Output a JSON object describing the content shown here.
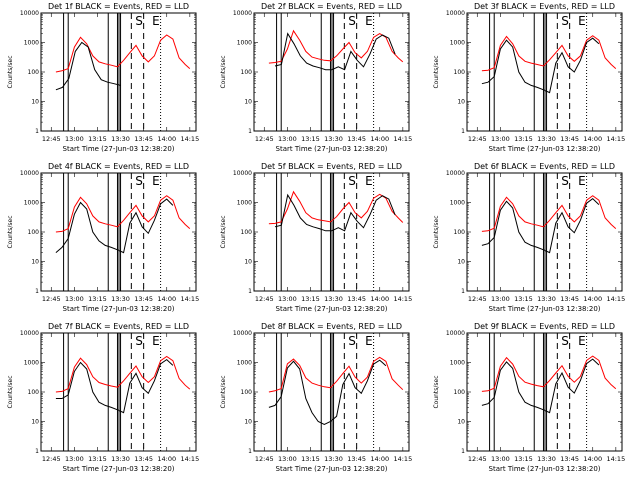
{
  "figure": {
    "panels": [
      {
        "title": "Det 1f BLACK = Events, RED = LLD"
      },
      {
        "title": "Det 2f BLACK = Events, RED = LLD"
      },
      {
        "title": "Det 3f BLACK = Events, RED = LLD"
      },
      {
        "title": "Det 4f BLACK = Events, RED = LLD"
      },
      {
        "title": "Det 5f BLACK = Events, RED = LLD"
      },
      {
        "title": "Det 6f BLACK = Events, RED = LLD"
      },
      {
        "title": "Det 7f BLACK = Events, RED = LLD"
      },
      {
        "title": "Det 8f BLACK = Events, RED = LLD"
      },
      {
        "title": "Det 9f BLACK = Events, RED = LLD"
      }
    ],
    "ylabel": "Counts/sec",
    "xlabel": "Start Time (27-Jun-03 12:38:20)",
    "x_ticks": [
      "12:45",
      "13:00",
      "13:15",
      "13:30",
      "13:45",
      "14:00",
      "14:15"
    ],
    "y_ticks": [
      "1",
      "10",
      "100",
      "1000",
      "10000"
    ],
    "markers": [
      "S",
      "E"
    ]
  },
  "chart_data": {
    "type": "line",
    "y_scale": "log",
    "ylim": [
      1,
      10000
    ],
    "xlim": [
      "12:38:20",
      "14:19"
    ],
    "x_ticks": [
      "12:45",
      "13:00",
      "13:15",
      "13:30",
      "13:45",
      "14:00",
      "14:15"
    ],
    "series_colors": {
      "events": "#000000",
      "lld": "#ff0000"
    },
    "vertical_lines": {
      "solid": [
        "12:53",
        "12:56",
        "13:22",
        "13:28",
        "13:29",
        "13:30"
      ],
      "dashed": [
        "13:37",
        "13:45"
      ],
      "dotted": [
        "13:56"
      ]
    },
    "annotations": [
      {
        "text": "S",
        "x": "13:42"
      },
      {
        "text": "E",
        "x": "13:53"
      }
    ],
    "x_times": [
      "12:48",
      "12:52",
      "12:56",
      "13:00",
      "13:04",
      "13:08",
      "13:12",
      "13:16",
      "13:20",
      "13:24",
      "13:28",
      "13:32",
      "13:36",
      "13:40",
      "13:44",
      "13:48",
      "13:52",
      "13:56",
      "14:00",
      "14:04",
      "14:08",
      "14:12",
      "14:15"
    ],
    "panels": [
      {
        "title": "Det 1f BLACK = Events, RED = LLD",
        "series": [
          {
            "key": "lld",
            "values": [
              100,
              110,
              130,
              700,
              1500,
              900,
              350,
              220,
              190,
              170,
              150,
              250,
              450,
              800,
              350,
              220,
              350,
              1200,
              1800,
              1300,
              300,
              180,
              130
            ]
          },
          {
            "key": "events",
            "start": "12:48",
            "end": "13:30",
            "values": [
              25,
              30,
              60,
              500,
              1000,
              700,
              120,
              55,
              45,
              40,
              35
            ]
          }
        ]
      },
      {
        "title": "Det 2f BLACK = Events, RED = LLD",
        "series": [
          {
            "key": "lld",
            "values": [
              200,
              210,
              230,
              600,
              2500,
              1200,
              500,
              320,
              280,
              250,
              240,
              350,
              600,
              1000,
              450,
              300,
              500,
              1500,
              2000,
              1500,
              500,
              300,
              220
            ]
          },
          {
            "key": "events",
            "start": "12:52",
            "end": "14:10",
            "values": [
              160,
              180,
              2000,
              900,
              350,
              200,
              160,
              140,
              120,
              120,
              150,
              120,
              500,
              250,
              150,
              400,
              1300,
              1800,
              1400,
              400
            ]
          }
        ]
      },
      {
        "title": "Det 3f BLACK = Events, RED = LLD",
        "series": [
          {
            "key": "lld",
            "values": [
              110,
              115,
              140,
              800,
              1600,
              900,
              350,
              230,
              200,
              180,
              160,
              260,
              450,
              800,
              350,
              230,
              350,
              1200,
              1700,
              1200,
              300,
              180,
              130
            ]
          },
          {
            "key": "events",
            "start": "12:48",
            "end": "14:04",
            "values": [
              40,
              45,
              70,
              600,
              1200,
              700,
              100,
              45,
              35,
              30,
              25,
              20,
              200,
              450,
              150,
              100,
              250,
              1000,
              1400,
              900
            ]
          }
        ]
      },
      {
        "title": "Det 4f BLACK = Events, RED = LLD",
        "series": [
          {
            "key": "lld",
            "values": [
              100,
              105,
              130,
              700,
              1500,
              900,
              350,
              220,
              190,
              170,
              150,
              250,
              450,
              800,
              350,
              220,
              350,
              1200,
              1700,
              1200,
              300,
              180,
              130
            ]
          },
          {
            "key": "events",
            "start": "12:48",
            "end": "14:04",
            "values": [
              20,
              30,
              60,
              400,
              1000,
              600,
              100,
              50,
              35,
              30,
              25,
              20,
              200,
              450,
              150,
              90,
              250,
              900,
              1300,
              800
            ]
          }
        ]
      },
      {
        "title": "Det 5f BLACK = Events, RED = LLD",
        "series": [
          {
            "key": "lld",
            "values": [
              190,
              195,
              220,
              600,
              2300,
              1100,
              450,
              300,
              260,
              240,
              220,
              330,
              600,
              1000,
              450,
              300,
              500,
              1400,
              1900,
              1400,
              500,
              300,
              210
            ]
          },
          {
            "key": "events",
            "start": "12:52",
            "end": "14:10",
            "values": [
              150,
              170,
              1800,
              800,
              300,
              180,
              150,
              130,
              110,
              110,
              140,
              110,
              450,
              230,
              140,
              380,
              1200,
              1700,
              1300,
              380
            ]
          }
        ]
      },
      {
        "title": "Det 6f BLACK = Events, RED = LLD",
        "series": [
          {
            "key": "lld",
            "values": [
              105,
              110,
              135,
              750,
              1500,
              900,
              350,
              220,
              190,
              170,
              150,
              250,
              450,
              800,
              350,
              220,
              350,
              1200,
              1700,
              1200,
              300,
              180,
              130
            ]
          },
          {
            "key": "events",
            "start": "12:48",
            "end": "14:04",
            "values": [
              35,
              40,
              65,
              550,
              1100,
              650,
              100,
              45,
              35,
              30,
              25,
              20,
              200,
              450,
              150,
              95,
              250,
              950,
              1350,
              850
            ]
          }
        ]
      },
      {
        "title": "Det 7f BLACK = Events, RED = LLD",
        "series": [
          {
            "key": "lld",
            "values": [
              100,
              105,
              130,
              700,
              1400,
              850,
              330,
              210,
              180,
              160,
              145,
              240,
              430,
              760,
              330,
              210,
              330,
              1150,
              1600,
              1150,
              290,
              170,
              125
            ]
          },
          {
            "key": "events",
            "start": "12:48",
            "end": "14:04",
            "values": [
              60,
              60,
              80,
              500,
              1000,
              600,
              100,
              45,
              35,
              30,
              25,
              20,
              200,
              430,
              140,
              90,
              240,
              900,
              1250,
              800
            ]
          }
        ]
      },
      {
        "title": "Det 8f BLACK = Events, RED = LLD",
        "series": [
          {
            "key": "lld",
            "values": [
              100,
              110,
              130,
              900,
              1300,
              800,
              300,
              200,
              170,
              150,
              140,
              230,
              420,
              750,
              320,
              200,
              320,
              1100,
              1500,
              1100,
              280,
              170,
              120
            ]
          },
          {
            "key": "events",
            "start": "12:48",
            "end": "14:04",
            "values": [
              30,
              35,
              70,
              650,
              1100,
              600,
              60,
              20,
              10,
              8,
              10,
              15,
              180,
              420,
              140,
              90,
              240,
              880,
              1200,
              780
            ]
          }
        ]
      },
      {
        "title": "Det 9f BLACK = Events, RED = LLD",
        "series": [
          {
            "key": "lld",
            "values": [
              105,
              110,
              135,
              750,
              1450,
              880,
              340,
              215,
              185,
              165,
              150,
              245,
              440,
              780,
              340,
              215,
              340,
              1180,
              1650,
              1180,
              295,
              175,
              128
            ]
          },
          {
            "key": "events",
            "start": "12:48",
            "end": "14:04",
            "values": [
              35,
              40,
              65,
              550,
              1050,
              630,
              100,
              45,
              35,
              30,
              25,
              20,
              190,
              440,
              145,
              92,
              245,
              920,
              1300,
              820
            ]
          }
        ]
      }
    ]
  }
}
